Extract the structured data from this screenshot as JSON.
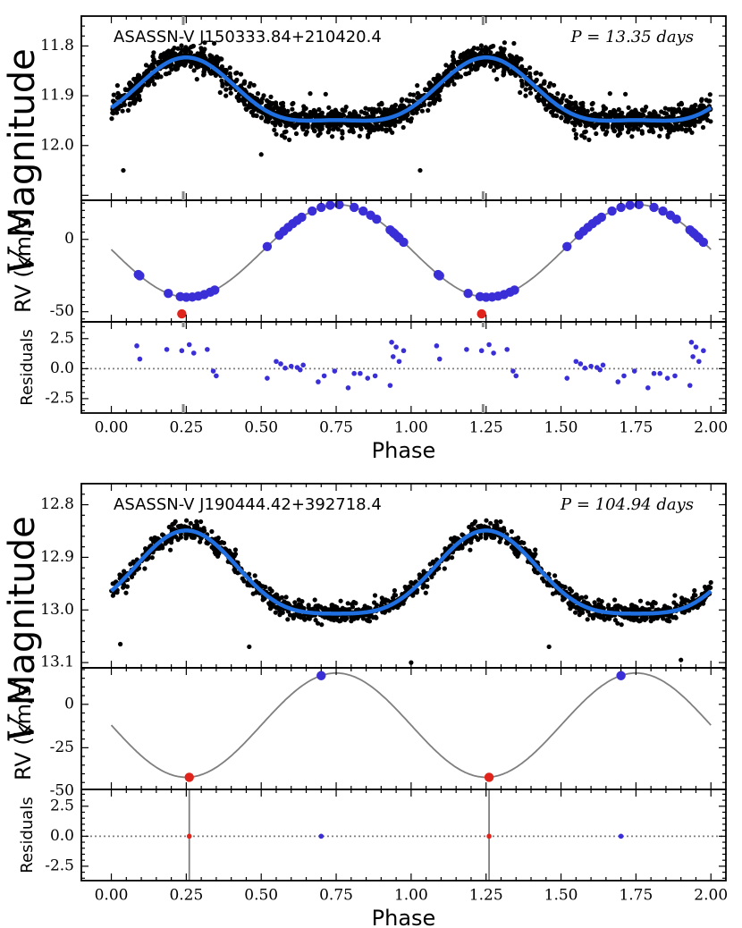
{
  "chart_data": [
    {
      "type": "scatter",
      "star": "ASASSN-V J150333.84+210420.4",
      "period_label": "P = 13.35 days",
      "period_days": 13.35,
      "x_label": "Phase",
      "x_ticks": [
        "0.00",
        "0.25",
        "0.50",
        "0.75",
        "1.00",
        "1.25",
        "1.50",
        "1.75",
        "2.00"
      ],
      "xlim": [
        -0.1,
        2.05
      ],
      "panels": {
        "light_curve": {
          "ylabel": "V Magnitude",
          "ylabel_italic_part": "V",
          "ylabel_text_part": "Magnitude",
          "ylim": [
            12.11,
            11.74
          ],
          "inverted": true,
          "y_ticks": [
            "11.8",
            "11.9",
            "12.0"
          ],
          "model": {
            "mean": 11.905,
            "a1": 0.019,
            "a2": 0.063,
            "phase0": 0.25
          },
          "n_points": 1100,
          "scatter_sigma": 0.013,
          "outliers": [
            [
              0.04,
              12.05
            ],
            [
              0.5,
              12.018
            ],
            [
              1.03,
              12.05
            ],
            [
              0.77,
              11.985
            ],
            [
              1.55,
              11.985
            ]
          ]
        },
        "rv": {
          "ylabel": "RV (km/s)",
          "ylim": [
            -57,
            27
          ],
          "y_ticks": [
            "0",
            "-50"
          ],
          "curve": {
            "gamma": -8,
            "K": 32,
            "phase_max": 0.755
          },
          "blue_phases": [
            0.09,
            0.095,
            0.19,
            0.23,
            0.25,
            0.27,
            0.29,
            0.31,
            0.33,
            0.345,
            0.52,
            0.56,
            0.575,
            0.59,
            0.605,
            0.62,
            0.635,
            0.67,
            0.7,
            0.73,
            0.76,
            0.81,
            0.84,
            0.865,
            0.885,
            0.93,
            0.94,
            0.945,
            0.955,
            0.96,
            0.975,
            1.09,
            1.095,
            1.19,
            1.23,
            1.25,
            1.27,
            1.29,
            1.31,
            1.33,
            1.345,
            1.52,
            1.56,
            1.575,
            1.59,
            1.605,
            1.62,
            1.635,
            1.67,
            1.7,
            1.73,
            1.76,
            1.81,
            1.84,
            1.865,
            1.885,
            1.93,
            1.94,
            1.945,
            1.955,
            1.96,
            1.975
          ],
          "red_points": [
            [
              0.235,
              -51.5
            ],
            [
              1.235,
              -51.5
            ]
          ]
        },
        "residuals": {
          "ylabel": "Residuals",
          "ylim": [
            -3.7,
            3.9
          ],
          "y_ticks": [
            "2.5",
            "0.0",
            "-2.5"
          ],
          "points": [
            [
              0.085,
              1.9
            ],
            [
              0.095,
              0.8
            ],
            [
              0.185,
              1.6
            ],
            [
              0.235,
              1.5
            ],
            [
              0.26,
              2.0
            ],
            [
              0.275,
              1.3
            ],
            [
              0.32,
              1.6
            ],
            [
              0.34,
              -0.2
            ],
            [
              0.35,
              -0.6
            ],
            [
              0.52,
              -0.8
            ],
            [
              0.55,
              0.6
            ],
            [
              0.565,
              0.4
            ],
            [
              0.58,
              0.05
            ],
            [
              0.6,
              0.2
            ],
            [
              0.62,
              0.1
            ],
            [
              0.63,
              -0.1
            ],
            [
              0.64,
              0.3
            ],
            [
              0.69,
              -1.1
            ],
            [
              0.71,
              -0.6
            ],
            [
              0.745,
              -0.2
            ],
            [
              0.79,
              -1.6
            ],
            [
              0.81,
              -0.4
            ],
            [
              0.83,
              -0.4
            ],
            [
              0.855,
              -0.8
            ],
            [
              0.88,
              -0.6
            ],
            [
              0.93,
              -1.4
            ],
            [
              0.935,
              2.2
            ],
            [
              0.94,
              1.0
            ],
            [
              0.95,
              1.8
            ],
            [
              0.96,
              0.6
            ],
            [
              0.975,
              1.5
            ],
            [
              1.085,
              1.9
            ],
            [
              1.095,
              0.8
            ],
            [
              1.185,
              1.6
            ],
            [
              1.235,
              1.5
            ],
            [
              1.26,
              2.0
            ],
            [
              1.275,
              1.3
            ],
            [
              1.32,
              1.6
            ],
            [
              1.34,
              -0.2
            ],
            [
              1.35,
              -0.6
            ],
            [
              1.52,
              -0.8
            ],
            [
              1.55,
              0.6
            ],
            [
              1.565,
              0.4
            ],
            [
              1.58,
              0.05
            ],
            [
              1.6,
              0.2
            ],
            [
              1.62,
              0.1
            ],
            [
              1.63,
              -0.1
            ],
            [
              1.64,
              0.3
            ],
            [
              1.69,
              -1.1
            ],
            [
              1.71,
              -0.6
            ],
            [
              1.745,
              -0.2
            ],
            [
              1.79,
              -1.6
            ],
            [
              1.81,
              -0.4
            ],
            [
              1.83,
              -0.4
            ],
            [
              1.855,
              -0.8
            ],
            [
              1.88,
              -0.6
            ],
            [
              1.93,
              -1.4
            ],
            [
              1.935,
              2.2
            ],
            [
              1.94,
              1.0
            ],
            [
              1.95,
              1.8
            ],
            [
              1.96,
              0.6
            ],
            [
              1.975,
              1.5
            ]
          ]
        }
      },
      "phase_markers": [
        0.24,
        1.24
      ]
    },
    {
      "type": "scatter",
      "star": "ASASSN-V J190444.42+392718.4",
      "period_label": "P = 104.94 days",
      "period_days": 104.94,
      "x_label": "Phase",
      "x_ticks": [
        "0.00",
        "0.25",
        "0.50",
        "0.75",
        "1.00",
        "1.25",
        "1.50",
        "1.75",
        "2.00"
      ],
      "xlim": [
        -0.1,
        2.05
      ],
      "panels": {
        "light_curve": {
          "ylabel": "V Magnitude",
          "ylabel_italic_part": "V",
          "ylabel_text_part": "Magnitude",
          "ylim": [
            13.11,
            12.76
          ],
          "inverted": true,
          "y_ticks": [
            "12.8",
            "12.9",
            "13.0",
            "13.1"
          ],
          "model": {
            "mean": 12.946,
            "a1": 0.018,
            "a2": 0.079,
            "phase0": 0.25
          },
          "n_points": 700,
          "scatter_sigma": 0.009,
          "outliers": [
            [
              1.0,
              13.1
            ],
            [
              1.9,
              13.095
            ],
            [
              0.46,
              13.07
            ],
            [
              1.46,
              13.07
            ],
            [
              0.03,
              13.065
            ]
          ]
        },
        "rv": {
          "ylabel": "RV (km/s)",
          "ylim": [
            -49,
            21
          ],
          "y_ticks": [
            "0",
            "-25",
            "-50"
          ],
          "curve": {
            "gamma": -12,
            "K": 30,
            "phase_max": 0.75
          },
          "blue_points": [
            [
              0.7,
              16.5
            ],
            [
              1.7,
              16.5
            ]
          ],
          "red_points": [
            [
              0.26,
              -42
            ],
            [
              1.26,
              -42
            ]
          ]
        },
        "residuals": {
          "ylabel": "Residuals",
          "ylim": [
            -3.7,
            3.9
          ],
          "y_ticks": [
            "2.5",
            "0.0",
            "-2.5"
          ],
          "blue_points": [
            [
              0.7,
              0.0
            ],
            [
              1.7,
              0.0
            ]
          ],
          "red_points": [
            [
              0.26,
              0.0
            ],
            [
              1.26,
              0.0
            ]
          ],
          "vlines": [
            0.26,
            1.26
          ]
        }
      }
    }
  ],
  "colors": {
    "data_points": "#000000",
    "model_line": "#1f6fe0",
    "rv_curve": "#7f7f7f",
    "rv_points": "#3a2fd6",
    "red_points": "#e0241b",
    "zero_line": "#7f7f7f"
  }
}
